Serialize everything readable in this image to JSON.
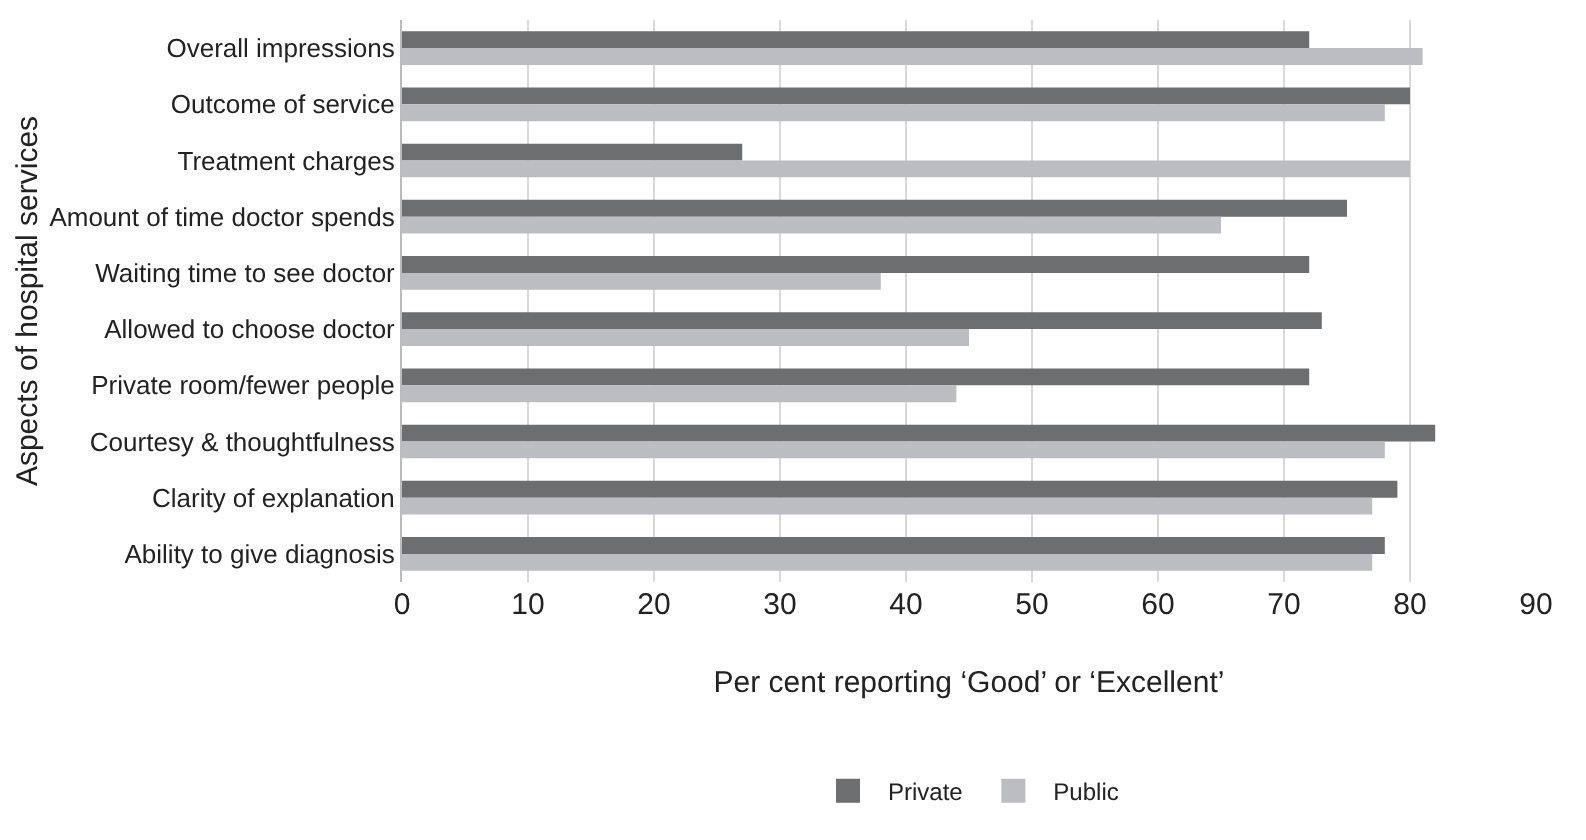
{
  "chart_data": {
    "type": "bar",
    "orientation": "horizontal",
    "ylabel": "Aspects of hospital services",
    "xlabel": "Per cent reporting ‘Good’ or ‘Excellent’",
    "categories": [
      "Overall impressions",
      "Outcome of service",
      "Treatment charges",
      "Amount of time doctor spends",
      "Waiting time to see doctor",
      "Allowed to choose doctor",
      "Private room/fewer people",
      "Courtesy & thoughtfulness",
      "Clarity of explanation",
      "Ability to give diagnosis"
    ],
    "series": [
      {
        "name": "Private",
        "color": "#6d6e70",
        "values": [
          72,
          80,
          27,
          75,
          72,
          73,
          72,
          82,
          79,
          78
        ]
      },
      {
        "name": "Public",
        "color": "#bcbdc0",
        "values": [
          81,
          78,
          80,
          65,
          38,
          45,
          44,
          78,
          77,
          77
        ]
      }
    ],
    "xlim": [
      0,
      90
    ],
    "xticks": [
      0,
      10,
      20,
      30,
      40,
      50,
      60,
      70,
      80,
      90
    ],
    "grid": "x",
    "legend": "bottom"
  }
}
